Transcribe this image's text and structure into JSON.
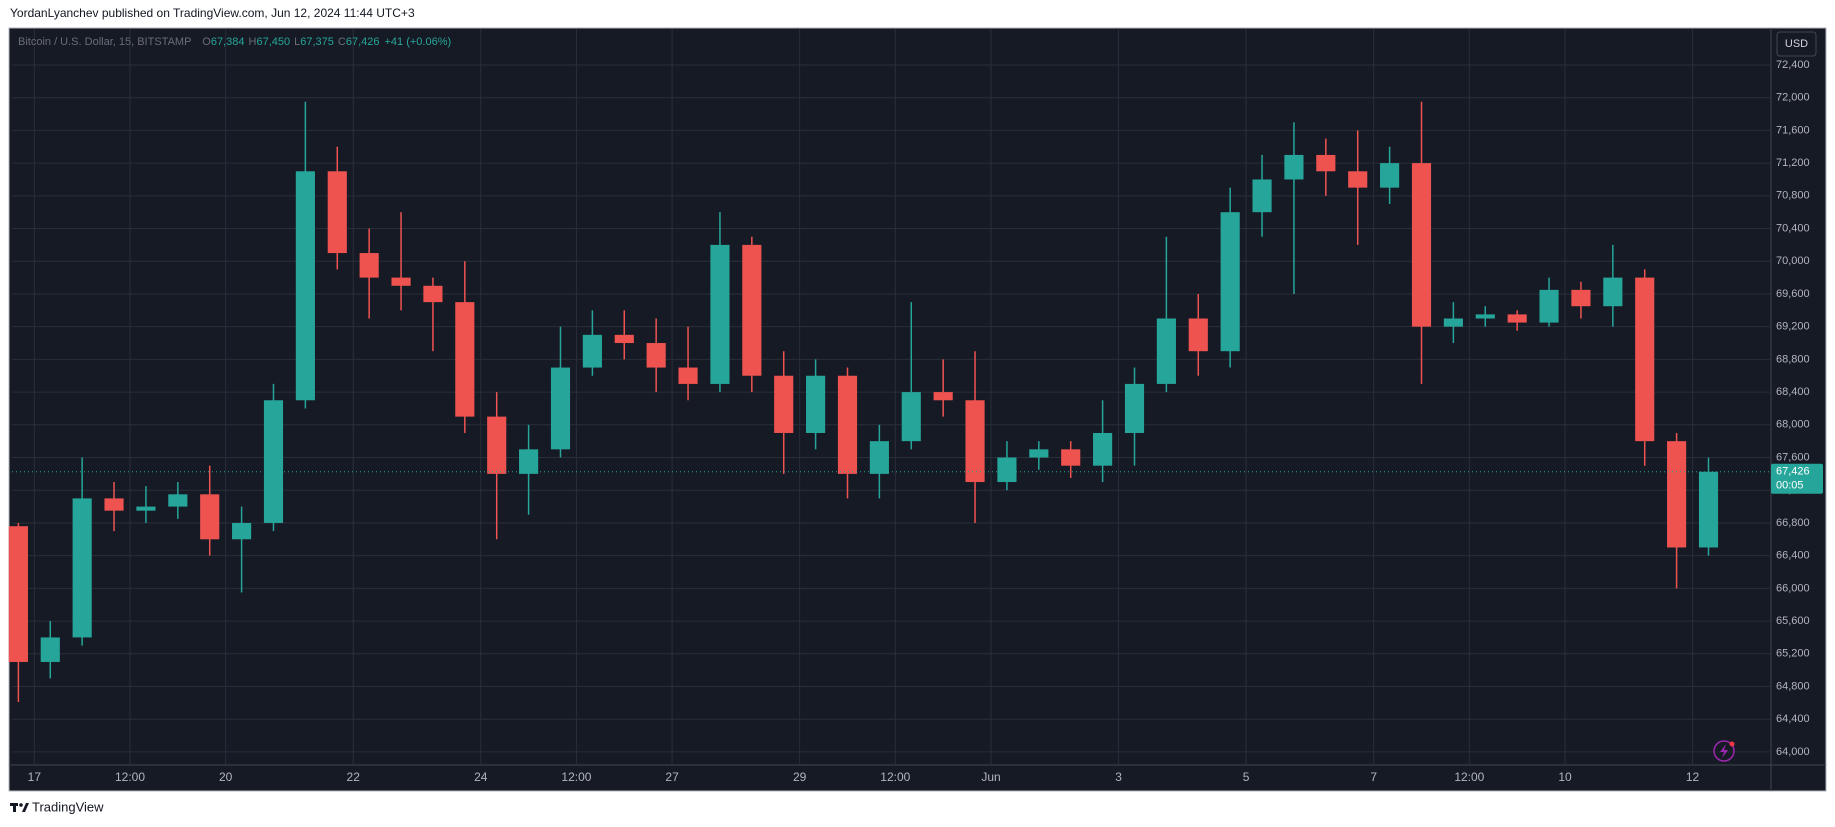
{
  "header": {
    "text": "YordanLyanchev published on TradingView.com, Jun 12, 2024 11:44 UTC+3"
  },
  "chart_data": {
    "type": "candlestick",
    "symbol": "Bitcoin / U.S. Dollar, 15, BITSTAMP",
    "ohlc_legend": [
      {
        "key": "O",
        "value": "67,384"
      },
      {
        "key": "H",
        "value": "67,450"
      },
      {
        "key": "L",
        "value": "67,375"
      },
      {
        "key": "C",
        "value": "67,426"
      }
    ],
    "change": "+41 (+0.06%)",
    "currency": "USD",
    "up_color": "#26a69a",
    "down_color": "#ef5350",
    "x": [
      -0.25,
      0.25,
      0.75,
      1.25,
      1.75,
      2.25,
      2.75,
      3.25,
      3.75,
      4.25,
      4.75,
      5.25,
      5.75,
      6.25,
      6.75,
      7.25,
      7.75,
      8.25,
      8.75,
      9.25,
      9.75,
      10.25,
      10.75,
      11.25,
      11.75,
      12.25,
      12.75,
      13.25,
      13.75,
      14.25,
      14.75,
      15.25,
      15.75,
      16.25,
      16.75,
      17.25,
      17.75,
      18.25,
      18.75,
      19.25,
      19.75,
      20.25,
      20.75,
      21.25,
      21.75,
      22.25,
      22.75,
      23.25,
      23.75,
      24.25,
      24.75,
      25.25,
      25.75,
      26.25
    ],
    "open": [
      66760,
      65100,
      65400,
      67100,
      66950,
      67000,
      67150,
      66600,
      66800,
      68300,
      71100,
      70100,
      69800,
      69700,
      69500,
      68100,
      67400,
      67700,
      68700,
      69100,
      69000,
      68700,
      68500,
      70200,
      68600,
      67900,
      68600,
      67400,
      67800,
      68400,
      68300,
      67300,
      67600,
      67700,
      67500,
      67900,
      68500,
      69300,
      68900,
      70600,
      71000,
      71300,
      71100,
      70900,
      71200,
      69200,
      69300,
      69350,
      69250,
      69650,
      69450,
      69800,
      67800,
      66500
    ],
    "high": [
      66800,
      65600,
      67600,
      67300,
      67250,
      67300,
      67500,
      67000,
      68500,
      71950,
      71400,
      70400,
      70600,
      69800,
      70000,
      68400,
      68000,
      69200,
      69400,
      69400,
      69300,
      69200,
      70600,
      70300,
      68900,
      68800,
      68700,
      68000,
      69500,
      68800,
      68900,
      67800,
      67800,
      67800,
      68300,
      68700,
      70300,
      69600,
      70900,
      71300,
      71700,
      71500,
      71600,
      71400,
      71950,
      69500,
      69450,
      69400,
      69800,
      69750,
      70200,
      69900,
      67900,
      67600
    ],
    "low": [
      64610,
      64900,
      65300,
      66700,
      66800,
      66850,
      66400,
      65950,
      66700,
      68200,
      69900,
      69300,
      69400,
      68900,
      67900,
      66600,
      66900,
      67600,
      68600,
      68800,
      68400,
      68300,
      68400,
      68400,
      67400,
      67700,
      67100,
      67100,
      67700,
      68100,
      66800,
      67200,
      67450,
      67350,
      67300,
      67500,
      68400,
      68600,
      68700,
      70300,
      69600,
      70800,
      70200,
      70700,
      68500,
      69000,
      69200,
      69150,
      69200,
      69300,
      69200,
      67500,
      66000,
      66400
    ],
    "close": [
      65100,
      65400,
      67100,
      66950,
      67000,
      67150,
      66600,
      66800,
      68300,
      71100,
      70100,
      69800,
      69700,
      69500,
      68100,
      67400,
      67700,
      68700,
      69100,
      69000,
      68700,
      68500,
      70200,
      68600,
      67900,
      68600,
      67400,
      67800,
      68400,
      68300,
      67300,
      67600,
      67700,
      67500,
      67900,
      68500,
      69300,
      68900,
      70600,
      71000,
      71300,
      71100,
      70900,
      71200,
      69200,
      69300,
      69350,
      69250,
      69650,
      69450,
      69800,
      67800,
      66500,
      67426
    ],
    "last_price": {
      "value": 67426,
      "label": "67,426"
    },
    "countdown": "00:05",
    "xlim": [
      -0.35,
      27.23
    ],
    "xticks": [
      {
        "value": 0,
        "label": "17"
      },
      {
        "value": 1.5,
        "label": "12:00"
      },
      {
        "value": 3,
        "label": "20"
      },
      {
        "value": 5,
        "label": "22"
      },
      {
        "value": 7,
        "label": "24"
      },
      {
        "value": 8.5,
        "label": "12:00"
      },
      {
        "value": 10,
        "label": "27"
      },
      {
        "value": 12,
        "label": "29"
      },
      {
        "value": 13.5,
        "label": "12:00"
      },
      {
        "value": 15,
        "label": "Jun"
      },
      {
        "value": 17,
        "label": "3"
      },
      {
        "value": 19,
        "label": "5"
      },
      {
        "value": 21,
        "label": "7"
      },
      {
        "value": 22.5,
        "label": "12:00"
      },
      {
        "value": 24,
        "label": "10"
      },
      {
        "value": 26,
        "label": "12"
      }
    ],
    "ylim": [
      63840,
      72840
    ],
    "yticks": [
      {
        "value": 64000,
        "label": "64,000"
      },
      {
        "value": 64400,
        "label": "64,400"
      },
      {
        "value": 64800,
        "label": "64,800"
      },
      {
        "value": 65200,
        "label": "65,200"
      },
      {
        "value": 65600,
        "label": "65,600"
      },
      {
        "value": 66000,
        "label": "66,000"
      },
      {
        "value": 66400,
        "label": "66,400"
      },
      {
        "value": 66800,
        "label": "66,800"
      },
      {
        "value": 67200,
        "label": "67,200"
      },
      {
        "value": 67600,
        "label": "67,600"
      },
      {
        "value": 68000,
        "label": "68,000"
      },
      {
        "value": 68400,
        "label": "68,400"
      },
      {
        "value": 68800,
        "label": "68,800"
      },
      {
        "value": 69200,
        "label": "69,200"
      },
      {
        "value": 69600,
        "label": "69,600"
      },
      {
        "value": 70000,
        "label": "70,000"
      },
      {
        "value": 70400,
        "label": "70,400"
      },
      {
        "value": 70800,
        "label": "70,800"
      },
      {
        "value": 71200,
        "label": "71,200"
      },
      {
        "value": 71600,
        "label": "71,600"
      },
      {
        "value": 72000,
        "label": "72,000"
      },
      {
        "value": 72400,
        "label": "72,400"
      }
    ],
    "grid": true
  },
  "footer": {
    "brand": "TradingView"
  }
}
